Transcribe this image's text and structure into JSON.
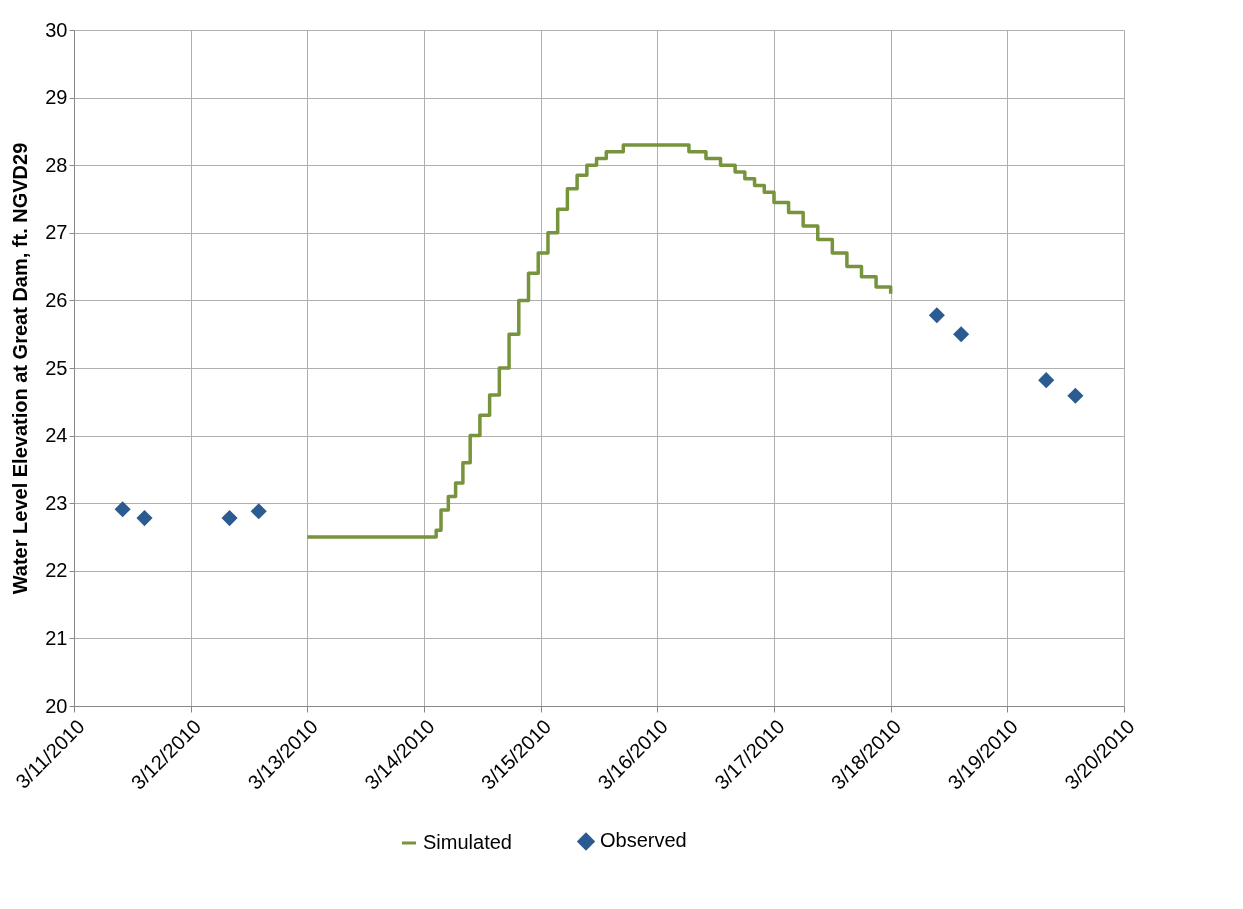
{
  "chart_data": {
    "type": "line",
    "ylabel": "Water Level Elevation at Great Dam, ft. NGVD29",
    "xlim": [
      "2010-03-11",
      "2010-03-20"
    ],
    "xticks": [
      {
        "value": "2010-03-11",
        "label": "3/11/2010"
      },
      {
        "value": "2010-03-12",
        "label": "3/12/2010"
      },
      {
        "value": "2010-03-13",
        "label": "3/13/2010"
      },
      {
        "value": "2010-03-14",
        "label": "3/14/2010"
      },
      {
        "value": "2010-03-15",
        "label": "3/15/2010"
      },
      {
        "value": "2010-03-16",
        "label": "3/16/2010"
      },
      {
        "value": "2010-03-17",
        "label": "3/17/2010"
      },
      {
        "value": "2010-03-18",
        "label": "3/18/2010"
      },
      {
        "value": "2010-03-19",
        "label": "3/19/2010"
      },
      {
        "value": "2010-03-20",
        "label": "3/20/2010"
      }
    ],
    "ylim": [
      20,
      30
    ],
    "yticks": [
      20,
      21,
      22,
      23,
      24,
      25,
      26,
      27,
      28,
      29,
      30
    ],
    "grid": true,
    "legend": "bottom",
    "series": [
      {
        "name": "Simulated",
        "type": "step",
        "color": "#77933c",
        "marker": "none",
        "x": [
          "2010-03-13T00:00",
          "2010-03-14T02:00",
          "2010-03-14T02:30",
          "2010-03-14T03:30",
          "2010-03-14T05:00",
          "2010-03-14T06:30",
          "2010-03-14T08:00",
          "2010-03-14T09:30",
          "2010-03-14T11:30",
          "2010-03-14T13:30",
          "2010-03-14T15:30",
          "2010-03-14T17:30",
          "2010-03-14T19:30",
          "2010-03-14T21:30",
          "2010-03-14T23:30",
          "2010-03-15T01:30",
          "2010-03-15T03:30",
          "2010-03-15T05:30",
          "2010-03-15T07:30",
          "2010-03-15T09:30",
          "2010-03-15T11:30",
          "2010-03-15T13:30",
          "2010-03-15T17:00",
          "2010-03-16T06:00",
          "2010-03-16T06:30",
          "2010-03-16T10:00",
          "2010-03-16T13:00",
          "2010-03-16T16:00",
          "2010-03-16T18:00",
          "2010-03-16T20:00",
          "2010-03-16T22:00",
          "2010-03-17T00:00",
          "2010-03-17T03:00",
          "2010-03-17T06:00",
          "2010-03-17T09:00",
          "2010-03-17T12:00",
          "2010-03-17T15:00",
          "2010-03-17T18:00",
          "2010-03-17T21:00",
          "2010-03-18T00:00"
        ],
        "values": [
          22.5,
          22.5,
          22.6,
          22.9,
          23.1,
          23.3,
          23.6,
          24.0,
          24.3,
          24.6,
          25.0,
          25.5,
          26.0,
          26.4,
          26.7,
          27.0,
          27.35,
          27.65,
          27.85,
          28.0,
          28.1,
          28.2,
          28.3,
          28.3,
          28.2,
          28.1,
          28.0,
          27.9,
          27.8,
          27.7,
          27.6,
          27.45,
          27.3,
          27.1,
          26.9,
          26.7,
          26.5,
          26.35,
          26.2,
          26.1
        ]
      },
      {
        "name": "Observed",
        "type": "scatter",
        "color": "#2c5b91",
        "marker": "diamond",
        "x": [
          "2010-03-11T10:00",
          "2010-03-11T14:30",
          "2010-03-12T08:00",
          "2010-03-12T14:00",
          "2010-03-18T09:30",
          "2010-03-18T14:30",
          "2010-03-19T08:00",
          "2010-03-19T14:00"
        ],
        "values": [
          22.91,
          22.78,
          22.78,
          22.88,
          25.78,
          25.5,
          24.82,
          24.59
        ]
      }
    ]
  }
}
